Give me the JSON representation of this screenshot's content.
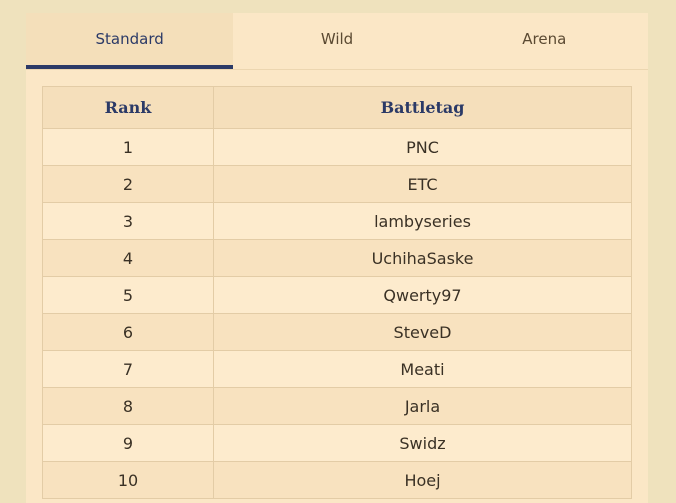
{
  "tabs": [
    "Standard",
    "Wild",
    "Arena"
  ],
  "active_tab": 0,
  "table": {
    "headers": [
      "Rank",
      "Battletag"
    ],
    "rows": [
      [
        1,
        "PNC"
      ],
      [
        2,
        "ETC"
      ],
      [
        3,
        "lambyseries"
      ],
      [
        4,
        "UchihaSaske"
      ],
      [
        5,
        "Qwerty97"
      ],
      [
        6,
        "SteveD"
      ],
      [
        7,
        "Meati"
      ],
      [
        8,
        "Jarla"
      ],
      [
        9,
        "Swidz"
      ],
      [
        10,
        "Hoej"
      ]
    ]
  }
}
